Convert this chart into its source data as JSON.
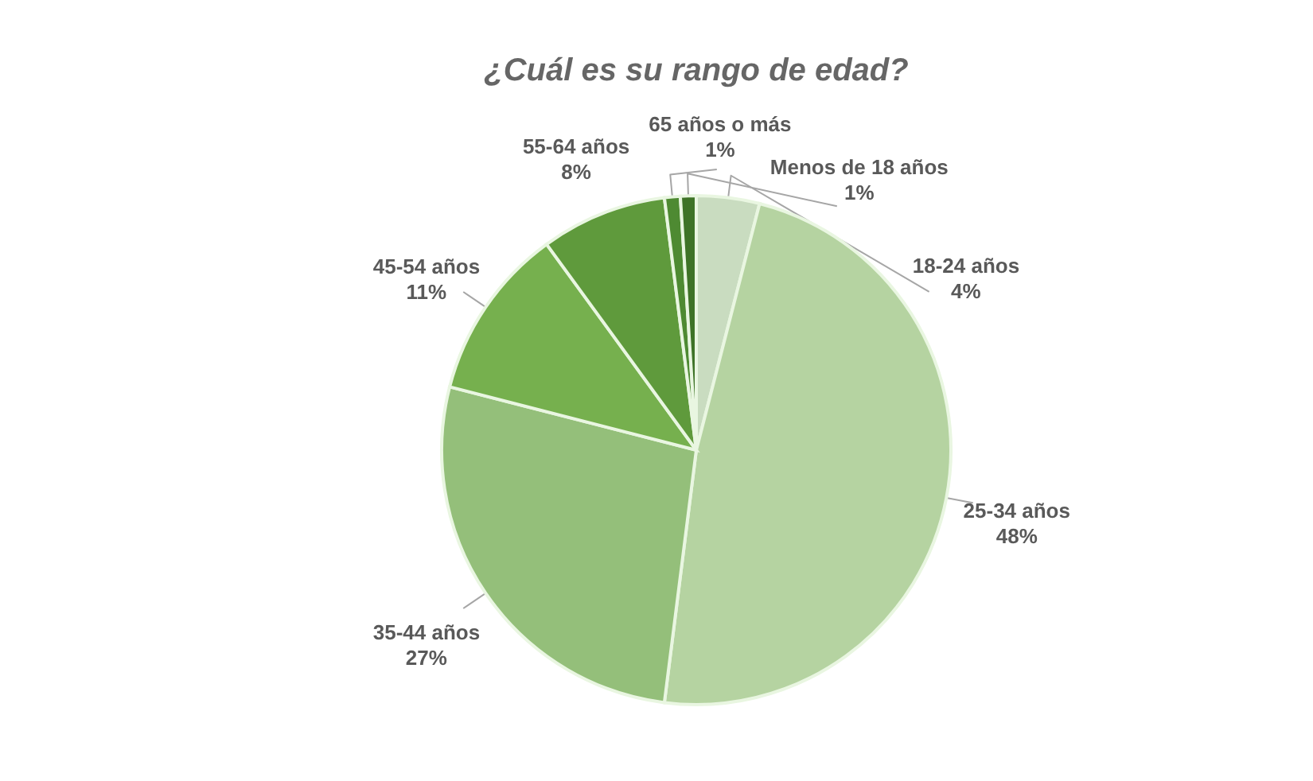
{
  "chart_data": {
    "type": "pie",
    "title": "¿Cuál es su rango de edad?",
    "categories": [
      "18-24 años",
      "25-34 años",
      "35-44 años",
      "45-54 años",
      "55-64 años",
      "65 años o más",
      "Menos de 18 años"
    ],
    "values": [
      4,
      48,
      27,
      11,
      8,
      1,
      1
    ],
    "value_labels": [
      "4%",
      "48%",
      "27%",
      "11%",
      "8%",
      "1%",
      "1%"
    ],
    "colors": [
      "#c9dcc0",
      "#b5d3a1",
      "#94bf7a",
      "#76b04e",
      "#5f9a3c",
      "#4e8a32",
      "#3e7327"
    ],
    "legend": false
  }
}
